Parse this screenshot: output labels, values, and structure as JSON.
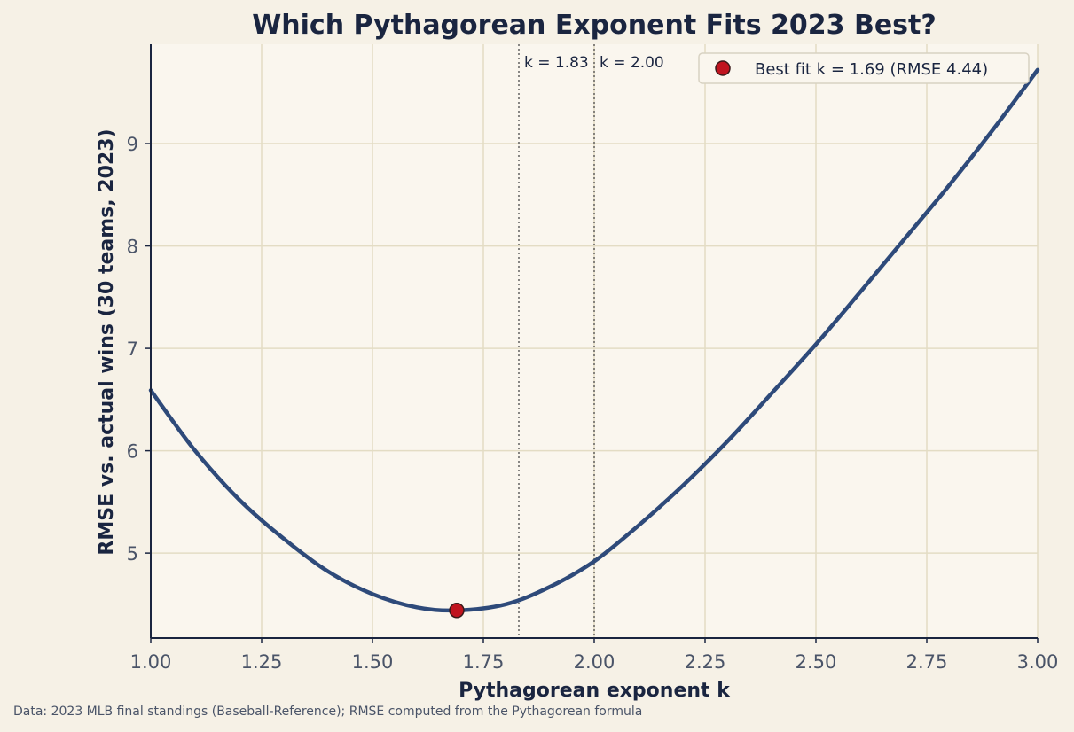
{
  "caption": "Data: 2023 MLB final standings (Baseball-Reference); RMSE computed from the Pythagorean formula",
  "colors": {
    "background": "#f6f1e6",
    "plot_background": "#faf6ee",
    "grid": "#e3dcc4",
    "curve": "#2e4a7a",
    "best_fit_marker": "#c0141f",
    "text_dark": "#1a2540",
    "tick_text": "#4a5468",
    "reference_lines": "#4a4a4a"
  },
  "chart_data": {
    "type": "line",
    "title": "Which Pythagorean Exponent Fits 2023 Best?",
    "xlabel": "Pythagorean exponent  k",
    "ylabel": "RMSE vs. actual wins (30 teams, 2023)",
    "xlim": [
      1.0,
      3.0
    ],
    "ylim": [
      4.17,
      9.97
    ],
    "x_ticks": [
      "1.00",
      "1.25",
      "1.50",
      "1.75",
      "2.00",
      "2.25",
      "2.50",
      "2.75",
      "3.00"
    ],
    "y_ticks": [
      "5",
      "6",
      "7",
      "8",
      "9"
    ],
    "grid": true,
    "series": [
      {
        "name": "",
        "x": [
          1.0,
          1.1,
          1.2,
          1.3,
          1.4,
          1.5,
          1.6,
          1.69,
          1.8,
          1.9,
          2.0,
          2.1,
          2.2,
          2.3,
          2.4,
          2.5,
          2.6,
          2.7,
          2.8,
          2.9,
          3.0
        ],
        "y": [
          6.59,
          6.0,
          5.52,
          5.14,
          4.82,
          4.6,
          4.47,
          4.44,
          4.5,
          4.67,
          4.92,
          5.27,
          5.66,
          6.09,
          6.56,
          7.04,
          7.55,
          8.07,
          8.59,
          9.14,
          9.72
        ]
      }
    ],
    "reference_lines": [
      {
        "x": 1.83,
        "label": "k = 1.83"
      },
      {
        "x": 2.0,
        "label": "k = 2.00"
      }
    ],
    "best_fit": {
      "x": 1.69,
      "y": 4.44,
      "label": "Best fit  k = 1.69  (RMSE 4.44)"
    },
    "legend": {
      "position": "top-right",
      "entries": [
        "Best fit  k = 1.69  (RMSE 4.44)"
      ]
    }
  }
}
